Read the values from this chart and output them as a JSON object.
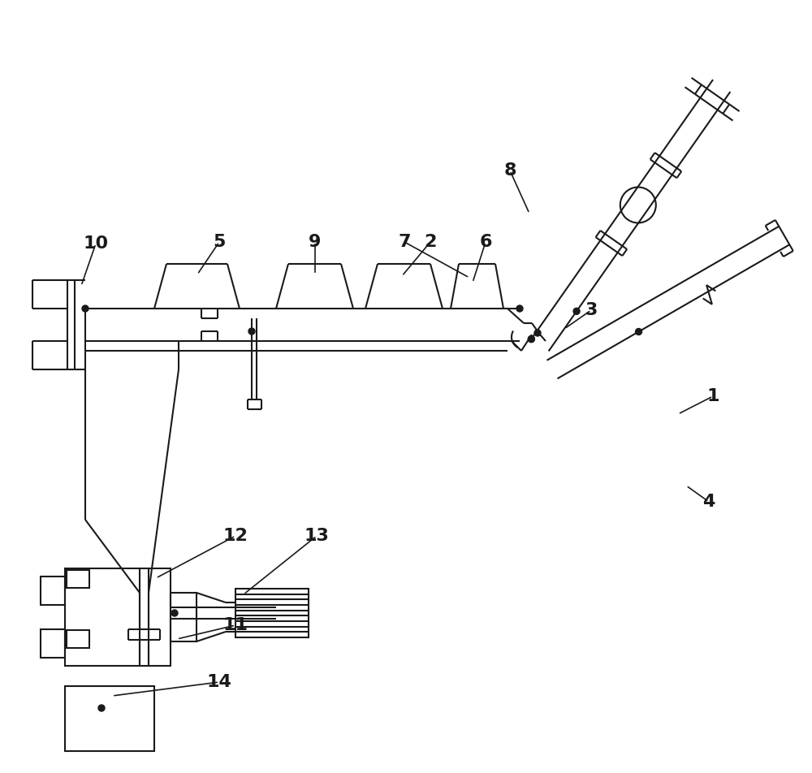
{
  "bg_color": "#ffffff",
  "line_color": "#1a1a1a",
  "lw": 1.5,
  "fs": 16
}
